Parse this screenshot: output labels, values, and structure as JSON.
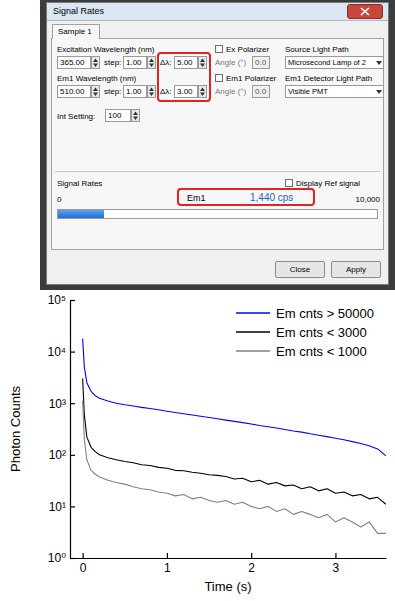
{
  "screenshot": {
    "window_title": "Signal Rates",
    "tab": "Sample 1",
    "rows": [
      {
        "wavelength_label": "Excitation Wavelength (nm)",
        "wavelength": "365.00",
        "step_label": "step:",
        "step": "1.00",
        "bandwidth_label": "Δλ:",
        "bandwidth": "5.00",
        "polarizer": "Ex Polarizer",
        "angle_label": "Angle (°)",
        "angle": "0.0",
        "path_label": "Source Light Path",
        "path": "Microsecond Lamp of 2"
      },
      {
        "wavelength_label": "Em1 Wavelength (nm)",
        "wavelength": "510.00",
        "step_label": "step:",
        "step": "1.00",
        "bandwidth_label": "Δλ:",
        "bandwidth": "3.00",
        "polarizer": "Em1 Polarizer",
        "angle_label": "Angle (°)",
        "angle": "0.0",
        "path_label": "Em1 Detector Light Path",
        "path": "Visible PMT"
      }
    ],
    "setting_label": "Int Setting:",
    "setting": "100",
    "signal_title": "Signal Rates",
    "display_ref": "Display Ref signal",
    "signal": {
      "channel": "Em1",
      "value": 1440,
      "label": "1,440 cps",
      "min": 0,
      "max": {
        "value": 10000,
        "label": "10,000"
      }
    },
    "buttons": [
      "Close",
      "Apply"
    ]
  },
  "chart_data": {
    "type": "line",
    "x_label": "Time (s)",
    "y_label": "Photon Counts",
    "x": [
      0,
      0.02,
      0.05,
      0.1,
      0.15,
      0.2,
      0.3,
      0.4,
      0.5,
      0.6,
      0.7,
      0.8,
      0.9,
      1.0,
      1.1,
      1.2,
      1.3,
      1.4,
      1.5,
      1.6,
      1.7,
      1.8,
      1.9,
      2.0,
      2.1,
      2.2,
      2.3,
      2.4,
      2.5,
      2.6,
      2.7,
      2.8,
      2.9,
      3.0,
      3.1,
      3.2,
      3.3,
      3.4,
      3.5,
      3.6
    ],
    "series": [
      {
        "name": "Em cnts > 50000",
        "color": "#0000ff",
        "values": [
          18000,
          5000,
          2500,
          1700,
          1400,
          1250,
          1100,
          1000,
          930,
          880,
          830,
          790,
          745,
          700,
          660,
          625,
          590,
          560,
          530,
          500,
          470,
          445,
          420,
          395,
          370,
          350,
          330,
          310,
          290,
          275,
          255,
          240,
          225,
          210,
          195,
          180,
          165,
          150,
          130,
          95
        ]
      },
      {
        "name": "Em cnts < 3000",
        "color": "#000000",
        "values": [
          3000,
          600,
          220,
          140,
          115,
          100,
          88,
          80,
          74,
          70,
          64,
          62,
          57,
          55,
          50,
          49,
          46,
          44,
          41,
          40,
          38,
          34,
          35,
          30,
          32,
          27,
          29,
          25,
          26,
          22,
          24,
          20,
          22,
          18,
          19,
          16,
          17,
          14,
          15,
          11
        ]
      },
      {
        "name": "Em cnts < 1000",
        "color": "#808080",
        "values": [
          1100,
          200,
          80,
          50,
          42,
          37,
          32,
          29,
          27,
          24,
          22,
          21,
          19,
          18,
          16,
          17,
          14,
          15,
          13,
          12,
          13,
          11,
          12,
          10,
          9,
          10,
          8,
          9,
          7,
          8,
          7,
          6,
          7,
          5,
          6,
          5,
          4,
          5,
          3,
          3
        ]
      }
    ],
    "xlim": [
      -0.15,
      3.6
    ],
    "xticks": [
      0,
      1,
      2,
      3
    ],
    "ylim": [
      1,
      100000
    ],
    "yticks": [
      {
        "value": 1,
        "label": "10⁰"
      },
      {
        "value": 10,
        "label": "10¹"
      },
      {
        "value": 100,
        "label": "10²"
      },
      {
        "value": 1000,
        "label": "10³"
      },
      {
        "value": 10000,
        "label": "10⁴"
      },
      {
        "value": 100000,
        "label": "10⁵"
      }
    ],
    "log": "y",
    "grid": false,
    "legend": "upper right"
  }
}
